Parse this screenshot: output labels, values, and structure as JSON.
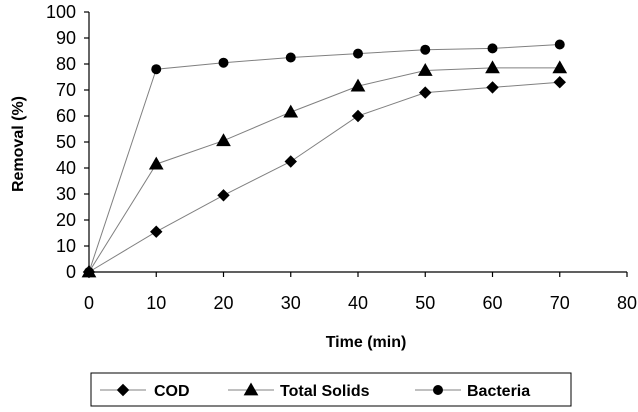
{
  "chart_data": {
    "type": "line",
    "title": "",
    "xlabel": "Time (min)",
    "ylabel": "Removal (%)",
    "xlim": [
      0,
      80
    ],
    "ylim": [
      0,
      100
    ],
    "x_ticks": [
      "0",
      "10",
      "20",
      "30",
      "40",
      "50",
      "60",
      "70",
      "80"
    ],
    "y_ticks": [
      "0",
      "10",
      "20",
      "30",
      "40",
      "50",
      "60",
      "70",
      "80",
      "90",
      "100"
    ],
    "grid": false,
    "legend_position": "bottom",
    "x": [
      0,
      10,
      20,
      30,
      40,
      50,
      60,
      70
    ],
    "series": [
      {
        "name": "COD",
        "marker": "diamond",
        "values": [
          0,
          15.5,
          29.5,
          42.5,
          60,
          69,
          71,
          73
        ]
      },
      {
        "name": "Total Solids",
        "marker": "triangle",
        "values": [
          0,
          41.5,
          50.5,
          61.5,
          71.5,
          77.5,
          78.5,
          78.5
        ]
      },
      {
        "name": "Bacteria",
        "marker": "circle",
        "values": [
          0,
          78,
          80.5,
          82.5,
          84,
          85.5,
          86,
          87.5
        ]
      }
    ],
    "colors": {
      "marker": "#000000",
      "line": "#808080"
    }
  }
}
